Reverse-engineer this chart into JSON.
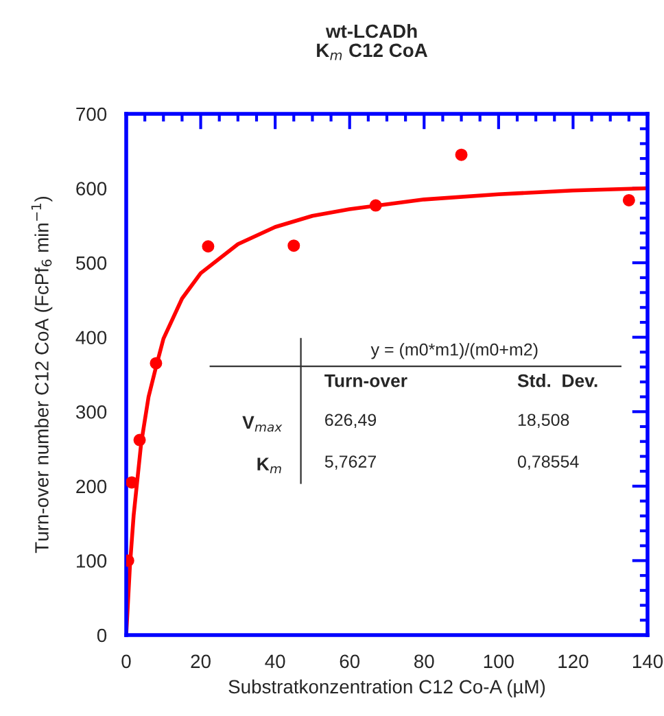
{
  "chart_data": {
    "type": "scatter",
    "title": "wt-LCADh\nK$_{m}$ C12 CoA",
    "xlabel": "Substratkonzentration C12 Co-A (µM)",
    "ylabel": "Turn-over number C12 CoA (FcPf$_{6}$ min$^{−1}$)",
    "series": [
      {
        "color": "#ff0000",
        "marker": "circle",
        "x": [
          0.5,
          1.5,
          3.6,
          8,
          22,
          45,
          67,
          90,
          135
        ],
        "values": [
          100,
          205,
          262,
          365,
          522,
          523,
          577,
          645,
          584
        ]
      },
      {
        "type": "line",
        "color": "#ff0000",
        "marker": "none",
        "line_style": "solid",
        "x": [
          0,
          1,
          2,
          4,
          6,
          8,
          10,
          15,
          20,
          30,
          40,
          50,
          60,
          80,
          100,
          120,
          140
        ],
        "values": [
          0,
          93,
          161,
          257,
          320,
          360,
          398,
          452,
          486,
          525,
          548,
          563,
          572,
          585,
          592,
          597,
          600
        ]
      }
    ],
    "xlim": [
      0,
      140
    ],
    "xticks": [
      0,
      20,
      40,
      60,
      80,
      100,
      120,
      140
    ],
    "ylim": [
      0,
      700
    ],
    "yticks": [
      0,
      100,
      200,
      300,
      400,
      500,
      600,
      700
    ],
    "grid": false,
    "legend": false,
    "annotations": [
      "y = (m0*m1)/(m0+m2)",
      "Turn-over",
      "Std.  Dev.",
      "V$_{max}$",
      "626,49",
      "18,508",
      "K$_{m}$",
      "5,7627",
      "0,78554"
    ]
  }
}
